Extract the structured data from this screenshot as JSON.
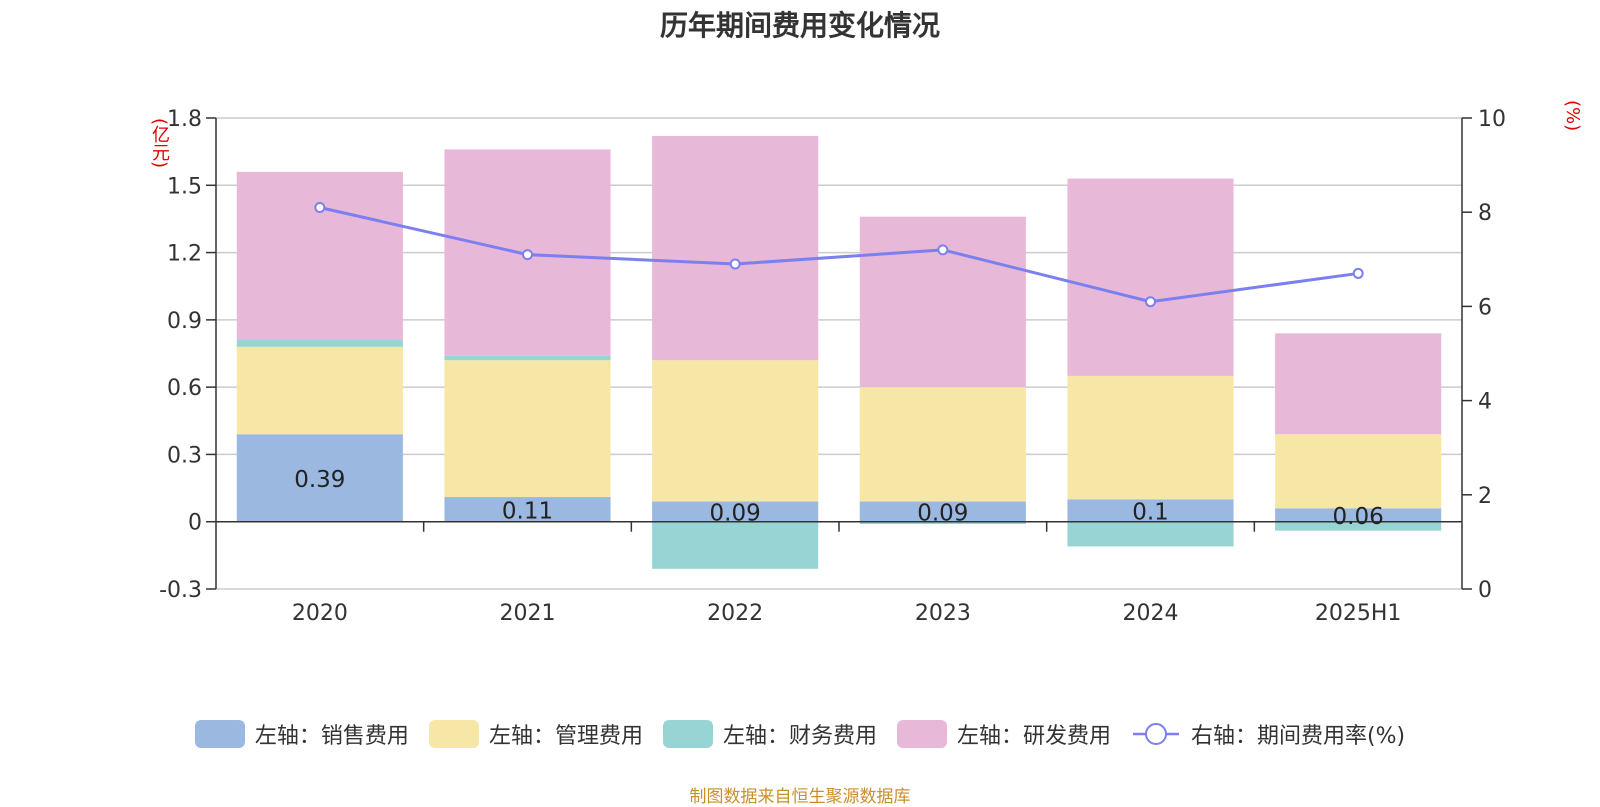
{
  "chart_data": {
    "type": "bar",
    "title": "历年期间费用变化情况",
    "categories": [
      "2020",
      "2021",
      "2022",
      "2023",
      "2024",
      "2025H1"
    ],
    "left_axis": {
      "unit": "(亿元)",
      "ylim": [
        -0.3,
        1.8
      ],
      "ticks": [
        "-0.3",
        "0",
        "0.3",
        "0.6",
        "0.9",
        "1.2",
        "1.5",
        "1.8"
      ]
    },
    "right_axis": {
      "unit": "(%)",
      "ylim": [
        0,
        10
      ],
      "ticks": [
        "0",
        "2",
        "4",
        "6",
        "8",
        "10"
      ]
    },
    "stacked": true,
    "grid": true,
    "legend_position": "bottom",
    "series": [
      {
        "name": "左轴：销售费用",
        "color": "#9bb8e0",
        "values": [
          0.39,
          0.11,
          0.09,
          0.09,
          0.1,
          0.06
        ],
        "data_labels": [
          "0.39",
          "0.11",
          "0.09",
          "0.09",
          "0.1",
          "0.06"
        ]
      },
      {
        "name": "左轴：管理费用",
        "color": "#f7e7a6",
        "values": [
          0.39,
          0.61,
          0.63,
          0.51,
          0.55,
          0.33
        ]
      },
      {
        "name": "左轴：财务费用",
        "color": "#98d4d4",
        "values": [
          0.03,
          0.02,
          -0.21,
          -0.01,
          -0.11,
          -0.04
        ]
      },
      {
        "name": "左轴：研发费用",
        "color": "#e8b8d8",
        "values": [
          0.75,
          0.92,
          1.0,
          0.76,
          0.88,
          0.45
        ]
      },
      {
        "name": "右轴：期间费用率(%)",
        "color": "#7b7ff0",
        "axis": "right",
        "type": "line",
        "values": [
          8.1,
          7.1,
          6.9,
          7.2,
          6.1,
          6.7
        ]
      }
    ],
    "source": "制图数据来自恒生聚源数据库"
  }
}
